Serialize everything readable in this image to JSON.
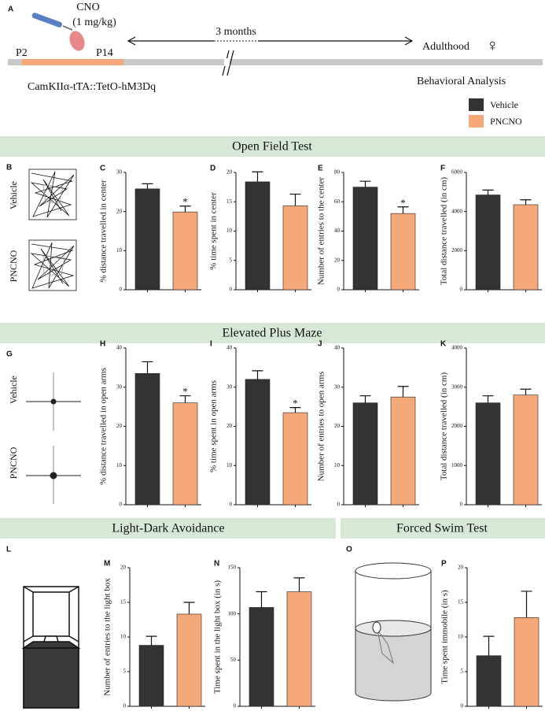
{
  "panel_a": {
    "label": "A",
    "cno": [
      "CNO",
      "(1 mg/kg)"
    ],
    "duration": "3 months",
    "start": "P2",
    "end": "P14",
    "adulthood": "Adulthood",
    "sex": "♀",
    "genotype": "CamKIIα-tTA::TetO-hM3Dq",
    "analysis": "Behavioral Analysis"
  },
  "legend": [
    {
      "name": "Vehicle",
      "color": "#333333"
    },
    {
      "name": "PNCNO",
      "color": "#f5a87a"
    }
  ],
  "sections": [
    "Open Field Test",
    "Elevated Plus Maze",
    "Light-Dark Avoidance",
    "Forced Swim Test"
  ],
  "panels": [
    {
      "label": "B",
      "rows": [
        "Vehicle",
        "PNCNO"
      ]
    },
    {
      "label": "G",
      "rows": [
        "Vehicle",
        "PNCNO"
      ]
    },
    {
      "label": "L"
    },
    {
      "label": "O"
    }
  ],
  "chart_data": [
    {
      "type": "bar",
      "panel": "C",
      "ylabel": "% distance travelled in center",
      "ylim": [
        0,
        30
      ],
      "yticks": [
        0,
        10,
        20,
        30
      ],
      "values": [
        25.8,
        19.9
      ],
      "errors": [
        1.3,
        1.5
      ],
      "colors": [
        "#333333",
        "#f5a87a"
      ],
      "significance": [
        null,
        "*"
      ]
    },
    {
      "type": "bar",
      "panel": "D",
      "ylabel": "% time spent in center",
      "ylim": [
        0,
        20
      ],
      "yticks": [
        0,
        5,
        10,
        15,
        20
      ],
      "values": [
        18.4,
        14.3
      ],
      "errors": [
        1.7,
        2.0
      ],
      "colors": [
        "#333333",
        "#f5a87a"
      ]
    },
    {
      "type": "bar",
      "panel": "E",
      "ylabel": "Number of entries to the center",
      "ylim": [
        0,
        80
      ],
      "yticks": [
        0,
        20,
        40,
        60,
        80
      ],
      "values": [
        70,
        52
      ],
      "errors": [
        4,
        4.5
      ],
      "colors": [
        "#333333",
        "#f5a87a"
      ],
      "significance": [
        null,
        "*"
      ]
    },
    {
      "type": "bar",
      "panel": "F",
      "ylabel": "Total distance travelled (in cm)",
      "ylim": [
        0,
        6000
      ],
      "yticks": [
        0,
        2000,
        4000,
        6000
      ],
      "values": [
        4850,
        4350
      ],
      "errors": [
        250,
        250
      ],
      "colors": [
        "#333333",
        "#f5a87a"
      ]
    },
    {
      "type": "bar",
      "panel": "H",
      "ylabel": "% distance travelled in open arms",
      "ylim": [
        0,
        40
      ],
      "yticks": [
        0,
        10,
        20,
        30,
        40
      ],
      "values": [
        33.5,
        26
      ],
      "errors": [
        3,
        1.8
      ],
      "colors": [
        "#333333",
        "#f5a87a"
      ],
      "significance": [
        null,
        "*"
      ]
    },
    {
      "type": "bar",
      "panel": "I",
      "ylabel": "% time spent in open arms",
      "ylim": [
        0,
        40
      ],
      "yticks": [
        0,
        10,
        20,
        30,
        40
      ],
      "values": [
        32,
        23.5
      ],
      "errors": [
        2.2,
        1.3
      ],
      "colors": [
        "#333333",
        "#f5a87a"
      ],
      "significance": [
        null,
        "*"
      ]
    },
    {
      "type": "bar",
      "panel": "J",
      "ylabel": "Number of entries to open arms",
      "ylim": [
        0,
        40
      ],
      "yticks": [
        0,
        10,
        20,
        30,
        40
      ],
      "values": [
        26,
        27.5
      ],
      "errors": [
        1.8,
        2.7
      ],
      "colors": [
        "#333333",
        "#f5a87a"
      ]
    },
    {
      "type": "bar",
      "panel": "K",
      "ylabel": "Total distance travelled (in cm)",
      "ylim": [
        0,
        4000
      ],
      "yticks": [
        0,
        1000,
        2000,
        3000,
        4000
      ],
      "values": [
        2600,
        2800
      ],
      "errors": [
        180,
        150
      ],
      "colors": [
        "#333333",
        "#f5a87a"
      ]
    },
    {
      "type": "bar",
      "panel": "M",
      "ylabel": "Number of entries to the light box",
      "ylim": [
        0,
        20
      ],
      "yticks": [
        0,
        5,
        10,
        15,
        20
      ],
      "values": [
        8.8,
        13.3
      ],
      "errors": [
        1.3,
        1.7
      ],
      "colors": [
        "#333333",
        "#f5a87a"
      ]
    },
    {
      "type": "bar",
      "panel": "N",
      "ylabel": "Time spent in the light box (in s)",
      "ylim": [
        0,
        150
      ],
      "yticks": [
        0,
        50,
        100,
        150
      ],
      "values": [
        107,
        124
      ],
      "errors": [
        17,
        15
      ],
      "colors": [
        "#333333",
        "#f5a87a"
      ]
    },
    {
      "type": "bar",
      "panel": "P",
      "ylabel": "Time spent immobile (in s)",
      "ylim": [
        0,
        20
      ],
      "yticks": [
        0,
        5,
        10,
        15,
        20
      ],
      "values": [
        7.3,
        12.8
      ],
      "errors": [
        2.8,
        3.8
      ],
      "colors": [
        "#333333",
        "#f5a87a"
      ]
    }
  ]
}
